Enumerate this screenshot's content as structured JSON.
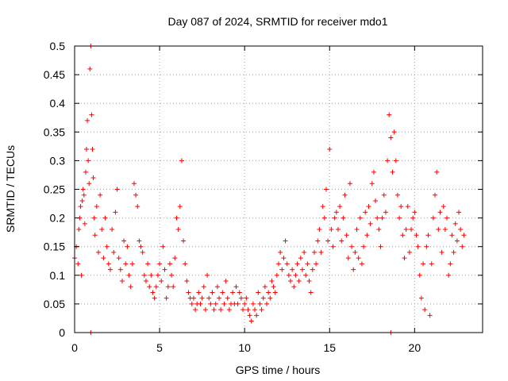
{
  "chart_data": {
    "type": "scatter",
    "title": "Day 087 of 2024, SRMTID for receiver mdo1",
    "xlabel": "GPS time / hours",
    "ylabel": "SRMTID / TECUs",
    "xlim": [
      0,
      24
    ],
    "ylim": [
      0,
      0.5
    ],
    "xticks": [
      0,
      5,
      10,
      15,
      20
    ],
    "yticks": [
      0,
      0.05,
      0.1,
      0.15,
      0.2,
      0.25,
      0.3,
      0.35,
      0.4,
      0.45,
      0.5
    ],
    "xtick_labels": [
      "0",
      "5",
      "10",
      "15",
      "20"
    ],
    "ytick_labels": [
      "0",
      "0.05",
      "0.1",
      "0.15",
      "0.2",
      "0.25",
      "0.3",
      "0.35",
      "0.4",
      "0.45",
      "0.5"
    ],
    "grid": true,
    "marker": "+",
    "color": "#ff0000",
    "series": [
      {
        "name": "SRMTID",
        "points": [
          [
            0.0,
            0.13
          ],
          [
            0.1,
            0.15
          ],
          [
            0.2,
            0.12
          ],
          [
            0.25,
            0.18
          ],
          [
            0.3,
            0.2
          ],
          [
            0.35,
            0.22
          ],
          [
            0.4,
            0.1
          ],
          [
            0.45,
            0.23
          ],
          [
            0.5,
            0.25
          ],
          [
            0.55,
            0.24
          ],
          [
            0.6,
            0.19
          ],
          [
            0.65,
            0.28
          ],
          [
            0.7,
            0.32
          ],
          [
            0.75,
            0.37
          ],
          [
            0.8,
            0.3
          ],
          [
            0.85,
            0.26
          ],
          [
            0.9,
            0.46
          ],
          [
            0.95,
            0.5
          ],
          [
            1.0,
            0.38
          ],
          [
            1.05,
            0.32
          ],
          [
            1.1,
            0.27
          ],
          [
            1.15,
            0.2
          ],
          [
            1.2,
            0.17
          ],
          [
            1.3,
            0.22
          ],
          [
            1.4,
            0.14
          ],
          [
            1.5,
            0.24
          ],
          [
            1.6,
            0.18
          ],
          [
            1.7,
            0.13
          ],
          [
            1.8,
            0.2
          ],
          [
            1.9,
            0.15
          ],
          [
            2.0,
            0.12
          ],
          [
            2.1,
            0.11
          ],
          [
            2.2,
            0.18
          ],
          [
            2.3,
            0.14
          ],
          [
            2.4,
            0.21
          ],
          [
            2.5,
            0.25
          ],
          [
            2.6,
            0.13
          ],
          [
            2.7,
            0.11
          ],
          [
            2.8,
            0.09
          ],
          [
            2.9,
            0.16
          ],
          [
            3.0,
            0.12
          ],
          [
            3.1,
            0.15
          ],
          [
            3.2,
            0.1
          ],
          [
            3.3,
            0.08
          ],
          [
            3.4,
            0.12
          ],
          [
            3.5,
            0.26
          ],
          [
            3.6,
            0.24
          ],
          [
            3.7,
            0.22
          ],
          [
            3.8,
            0.16
          ],
          [
            3.9,
            0.15
          ],
          [
            4.0,
            0.14
          ],
          [
            4.1,
            0.1
          ],
          [
            4.2,
            0.09
          ],
          [
            4.3,
            0.12
          ],
          [
            4.4,
            0.08
          ],
          [
            4.5,
            0.1
          ],
          [
            4.6,
            0.07
          ],
          [
            4.7,
            0.06
          ],
          [
            4.8,
            0.08
          ],
          [
            4.9,
            0.1
          ],
          [
            5.0,
            0.12
          ],
          [
            5.1,
            0.09
          ],
          [
            5.2,
            0.15
          ],
          [
            5.3,
            0.11
          ],
          [
            5.4,
            0.06
          ],
          [
            5.5,
            0.08
          ],
          [
            5.6,
            0.12
          ],
          [
            5.7,
            0.1
          ],
          [
            5.8,
            0.08
          ],
          [
            5.9,
            0.13
          ],
          [
            6.0,
            0.2
          ],
          [
            6.1,
            0.18
          ],
          [
            6.2,
            0.22
          ],
          [
            6.3,
            0.3
          ],
          [
            6.4,
            0.16
          ],
          [
            6.5,
            0.12
          ],
          [
            6.6,
            0.09
          ],
          [
            6.7,
            0.07
          ],
          [
            6.8,
            0.06
          ],
          [
            6.9,
            0.05
          ],
          [
            7.0,
            0.06
          ],
          [
            7.1,
            0.04
          ],
          [
            7.2,
            0.05
          ],
          [
            7.3,
            0.07
          ],
          [
            7.4,
            0.05
          ],
          [
            7.5,
            0.06
          ],
          [
            7.6,
            0.08
          ],
          [
            7.7,
            0.04
          ],
          [
            7.8,
            0.1
          ],
          [
            7.9,
            0.06
          ],
          [
            8.0,
            0.05
          ],
          [
            8.1,
            0.07
          ],
          [
            8.2,
            0.04
          ],
          [
            8.3,
            0.05
          ],
          [
            8.4,
            0.08
          ],
          [
            8.5,
            0.06
          ],
          [
            8.6,
            0.04
          ],
          [
            8.7,
            0.07
          ],
          [
            8.8,
            0.05
          ],
          [
            8.9,
            0.09
          ],
          [
            9.0,
            0.06
          ],
          [
            9.1,
            0.04
          ],
          [
            9.2,
            0.05
          ],
          [
            9.3,
            0.07
          ],
          [
            9.4,
            0.05
          ],
          [
            9.5,
            0.08
          ],
          [
            9.6,
            0.05
          ],
          [
            9.7,
            0.07
          ],
          [
            9.8,
            0.06
          ],
          [
            9.9,
            0.04
          ],
          [
            10.0,
            0.05
          ],
          [
            10.1,
            0.06
          ],
          [
            10.2,
            0.04
          ],
          [
            10.3,
            0.03
          ],
          [
            10.4,
            0.02
          ],
          [
            10.5,
            0.05
          ],
          [
            10.6,
            0.04
          ],
          [
            10.7,
            0.03
          ],
          [
            10.8,
            0.07
          ],
          [
            10.9,
            0.05
          ],
          [
            11.0,
            0.04
          ],
          [
            11.1,
            0.06
          ],
          [
            11.2,
            0.08
          ],
          [
            11.3,
            0.05
          ],
          [
            11.4,
            0.07
          ],
          [
            11.5,
            0.06
          ],
          [
            11.6,
            0.09
          ],
          [
            11.7,
            0.08
          ],
          [
            11.8,
            0.07
          ],
          [
            11.9,
            0.1
          ],
          [
            12.0,
            0.12
          ],
          [
            12.1,
            0.14
          ],
          [
            12.2,
            0.11
          ],
          [
            12.3,
            0.13
          ],
          [
            12.4,
            0.16
          ],
          [
            12.5,
            0.12
          ],
          [
            12.6,
            0.1
          ],
          [
            12.7,
            0.09
          ],
          [
            12.8,
            0.11
          ],
          [
            12.9,
            0.08
          ],
          [
            13.0,
            0.1
          ],
          [
            13.1,
            0.12
          ],
          [
            13.2,
            0.09
          ],
          [
            13.3,
            0.13
          ],
          [
            13.4,
            0.11
          ],
          [
            13.5,
            0.14
          ],
          [
            13.6,
            0.1
          ],
          [
            13.7,
            0.12
          ],
          [
            13.8,
            0.09
          ],
          [
            13.9,
            0.07
          ],
          [
            14.0,
            0.11
          ],
          [
            14.1,
            0.14
          ],
          [
            14.2,
            0.12
          ],
          [
            14.3,
            0.16
          ],
          [
            14.4,
            0.18
          ],
          [
            14.5,
            0.14
          ],
          [
            14.6,
            0.22
          ],
          [
            14.7,
            0.2
          ],
          [
            14.8,
            0.25
          ],
          [
            14.9,
            0.16
          ],
          [
            15.0,
            0.32
          ],
          [
            15.1,
            0.18
          ],
          [
            15.2,
            0.15
          ],
          [
            15.3,
            0.2
          ],
          [
            15.4,
            0.21
          ],
          [
            15.5,
            0.18
          ],
          [
            15.6,
            0.22
          ],
          [
            15.7,
            0.16
          ],
          [
            15.8,
            0.2
          ],
          [
            15.9,
            0.24
          ],
          [
            16.0,
            0.17
          ],
          [
            16.1,
            0.13
          ],
          [
            16.2,
            0.26
          ],
          [
            16.3,
            0.15
          ],
          [
            16.4,
            0.11
          ],
          [
            16.5,
            0.14
          ],
          [
            16.6,
            0.18
          ],
          [
            16.7,
            0.13
          ],
          [
            16.8,
            0.2
          ],
          [
            16.9,
            0.12
          ],
          [
            17.0,
            0.15
          ],
          [
            17.1,
            0.21
          ],
          [
            17.2,
            0.17
          ],
          [
            17.3,
            0.22
          ],
          [
            17.4,
            0.19
          ],
          [
            17.5,
            0.26
          ],
          [
            17.6,
            0.28
          ],
          [
            17.7,
            0.23
          ],
          [
            17.8,
            0.2
          ],
          [
            17.9,
            0.18
          ],
          [
            18.0,
            0.15
          ],
          [
            18.1,
            0.2
          ],
          [
            18.2,
            0.24
          ],
          [
            18.3,
            0.21
          ],
          [
            18.4,
            0.3
          ],
          [
            18.5,
            0.38
          ],
          [
            18.6,
            0.34
          ],
          [
            18.7,
            0.28
          ],
          [
            18.8,
            0.35
          ],
          [
            18.9,
            0.3
          ],
          [
            19.0,
            0.24
          ],
          [
            19.1,
            0.2
          ],
          [
            19.2,
            0.22
          ],
          [
            19.3,
            0.17
          ],
          [
            19.4,
            0.13
          ],
          [
            19.5,
            0.18
          ],
          [
            19.6,
            0.22
          ],
          [
            19.7,
            0.14
          ],
          [
            19.8,
            0.18
          ],
          [
            19.9,
            0.2
          ],
          [
            20.0,
            0.21
          ],
          [
            20.1,
            0.17
          ],
          [
            20.2,
            0.15
          ],
          [
            20.3,
            0.1
          ],
          [
            20.4,
            0.06
          ],
          [
            20.5,
            0.12
          ],
          [
            20.6,
            0.04
          ],
          [
            20.7,
            0.15
          ],
          [
            20.8,
            0.17
          ],
          [
            20.9,
            0.03
          ],
          [
            21.0,
            0.12
          ],
          [
            21.1,
            0.2
          ],
          [
            21.2,
            0.24
          ],
          [
            21.3,
            0.28
          ],
          [
            21.4,
            0.18
          ],
          [
            21.5,
            0.21
          ],
          [
            21.6,
            0.14
          ],
          [
            21.7,
            0.22
          ],
          [
            21.8,
            0.18
          ],
          [
            21.9,
            0.2
          ],
          [
            22.0,
            0.1
          ],
          [
            22.1,
            0.12
          ],
          [
            22.2,
            0.17
          ],
          [
            22.3,
            0.14
          ],
          [
            22.4,
            0.19
          ],
          [
            22.5,
            0.16
          ],
          [
            22.6,
            0.21
          ],
          [
            22.7,
            0.18
          ],
          [
            22.8,
            0.15
          ],
          [
            22.9,
            0.17
          ],
          [
            0.95,
            0.0
          ],
          [
            18.6,
            0.0
          ]
        ]
      }
    ]
  }
}
